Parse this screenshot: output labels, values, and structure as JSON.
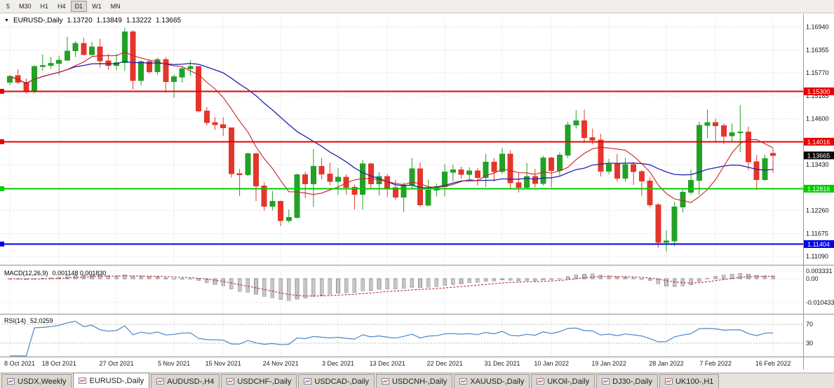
{
  "toolbar": {
    "timeframes": [
      {
        "label": "5",
        "active": false
      },
      {
        "label": "M30",
        "active": false
      },
      {
        "label": "H1",
        "active": false
      },
      {
        "label": "H4",
        "active": false
      },
      {
        "label": "D1",
        "active": true
      },
      {
        "label": "W1",
        "active": false
      },
      {
        "label": "MN",
        "active": false
      }
    ]
  },
  "chart": {
    "symbol_title": "EURUSD-,Daily",
    "ohlc_display": {
      "open": "1.13720",
      "high": "1.13849",
      "low": "1.13222",
      "close": "1.13665"
    },
    "price_axis": {
      "ticks": [
        {
          "label": "1.16940",
          "value": 1.1694
        },
        {
          "label": "1.16355",
          "value": 1.16355
        },
        {
          "label": "1.15770",
          "value": 1.1577
        },
        {
          "label": "1.15185",
          "value": 1.15185
        },
        {
          "label": "1.14600",
          "value": 1.146
        },
        {
          "label": "1.13430",
          "value": 1.1343
        },
        {
          "label": "1.12260",
          "value": 1.1226
        },
        {
          "label": "1.11675",
          "value": 1.11675
        },
        {
          "label": "1.11090",
          "value": 1.1109
        }
      ]
    },
    "hlines": [
      {
        "label": "1.15300",
        "value": 1.153,
        "color": "#e60000"
      },
      {
        "label": "1.14016",
        "value": 1.14016,
        "color": "#e60000"
      },
      {
        "label": "1.12816",
        "value": 1.12816,
        "color": "#00cc00"
      },
      {
        "label": "1.11404",
        "value": 1.11404,
        "color": "#0000e6"
      }
    ],
    "current_price": {
      "label": "1.13665",
      "value": 1.13665,
      "bg": "#000000"
    },
    "date_axis": [
      {
        "index": 0,
        "label": "8 Oct 2021"
      },
      {
        "index": 6,
        "label": "18 Oct 2021"
      },
      {
        "index": 13,
        "label": "27 Oct 2021"
      },
      {
        "index": 20,
        "label": "5 Nov 2021"
      },
      {
        "index": 26,
        "label": "15 Nov 2021"
      },
      {
        "index": 33,
        "label": "24 Nov 2021"
      },
      {
        "index": 40,
        "label": "3 Dec 2021"
      },
      {
        "index": 46,
        "label": "13 Dec 2021"
      },
      {
        "index": 53,
        "label": "22 Dec 2021"
      },
      {
        "index": 60,
        "label": "31 Dec 2021"
      },
      {
        "index": 66,
        "label": "10 Jan 2022"
      },
      {
        "index": 73,
        "label": "19 Jan 2022"
      },
      {
        "index": 80,
        "label": "28 Jan 2022"
      },
      {
        "index": 86,
        "label": "7 Feb 2022"
      },
      {
        "index": 93,
        "label": "16 Feb 2022"
      }
    ],
    "colors": {
      "up": "#22a126",
      "down": "#e5352b",
      "ma_fast": "#cc2020",
      "ma_slow": "#2022b0",
      "grid": "#d6d6d6"
    }
  },
  "indicators": {
    "macd": {
      "name": "MACD(12,26,9)",
      "values": "0.001148 0.001830",
      "ticks": [
        {
          "label": "0.003331",
          "value": 0.003331
        },
        {
          "label": "0.00",
          "value": 0
        },
        {
          "label": "-0.010433",
          "value": -0.010433
        }
      ],
      "histogram_color": "#c6c6c6",
      "signal_color": "#b22222"
    },
    "rsi": {
      "name": "RSI(14)",
      "value": "52.0259",
      "levels": [
        {
          "label": "70",
          "value": 70
        },
        {
          "label": "30",
          "value": 30
        }
      ],
      "line_color": "#4a86c8"
    }
  },
  "chart_data": {
    "type": "candlestick",
    "symbol": "EURUSD-",
    "timeframe": "Daily",
    "x_range": [
      "8 Oct 2021",
      "16 Feb 2022"
    ],
    "y_range": [
      1.1093,
      1.1713
    ],
    "ohlc": [
      [
        1.1553,
        1.1572,
        1.1546,
        1.1568
      ],
      [
        1.157,
        1.1586,
        1.1549,
        1.1553
      ],
      [
        1.1553,
        1.1563,
        1.1524,
        1.153
      ],
      [
        1.153,
        1.1597,
        1.1525,
        1.1593
      ],
      [
        1.1593,
        1.1624,
        1.1582,
        1.1596
      ],
      [
        1.1596,
        1.1618,
        1.1588,
        1.1601
      ],
      [
        1.1601,
        1.1621,
        1.1571,
        1.1609
      ],
      [
        1.1609,
        1.1669,
        1.1609,
        1.1633
      ],
      [
        1.1633,
        1.1658,
        1.1617,
        1.1652
      ],
      [
        1.1652,
        1.1667,
        1.1622,
        1.1624
      ],
      [
        1.1624,
        1.1656,
        1.1621,
        1.1643
      ],
      [
        1.1643,
        1.1664,
        1.1591,
        1.1608
      ],
      [
        1.1608,
        1.1626,
        1.1585,
        1.1596
      ],
      [
        1.1596,
        1.1626,
        1.1584,
        1.1603
      ],
      [
        1.1603,
        1.1692,
        1.1582,
        1.1682
      ],
      [
        1.1682,
        1.1686,
        1.1535,
        1.1558
      ],
      [
        1.1558,
        1.1609,
        1.1545,
        1.1606
      ],
      [
        1.1606,
        1.1612,
        1.1575,
        1.158
      ],
      [
        1.158,
        1.1616,
        1.1572,
        1.1611
      ],
      [
        1.1611,
        1.1617,
        1.1527,
        1.1555
      ],
      [
        1.1555,
        1.1573,
        1.1513,
        1.1567
      ],
      [
        1.1567,
        1.1593,
        1.1552,
        1.1588
      ],
      [
        1.1588,
        1.1609,
        1.157,
        1.1593
      ],
      [
        1.1593,
        1.1595,
        1.1476,
        1.148
      ],
      [
        1.148,
        1.149,
        1.1443,
        1.145
      ],
      [
        1.145,
        1.1464,
        1.1432,
        1.1445
      ],
      [
        1.1445,
        1.1464,
        1.1416,
        1.1437
      ],
      [
        1.1437,
        1.1438,
        1.131,
        1.132
      ],
      [
        1.132,
        1.1332,
        1.1263,
        1.1317
      ],
      [
        1.1317,
        1.1374,
        1.1313,
        1.1371
      ],
      [
        1.1371,
        1.1373,
        1.125,
        1.1289
      ],
      [
        1.1289,
        1.1298,
        1.1226,
        1.1237
      ],
      [
        1.1237,
        1.1276,
        1.1226,
        1.1249
      ],
      [
        1.1249,
        1.1251,
        1.1186,
        1.12
      ],
      [
        1.12,
        1.1229,
        1.1195,
        1.1208
      ],
      [
        1.1208,
        1.132,
        1.1206,
        1.1317
      ],
      [
        1.1317,
        1.1325,
        1.1258,
        1.1294
      ],
      [
        1.1294,
        1.1383,
        1.1235,
        1.1339
      ],
      [
        1.1339,
        1.136,
        1.1305,
        1.1319
      ],
      [
        1.1319,
        1.1348,
        1.129,
        1.13
      ],
      [
        1.13,
        1.1334,
        1.1266,
        1.1311
      ],
      [
        1.1311,
        1.1318,
        1.1267,
        1.1285
      ],
      [
        1.1285,
        1.1292,
        1.1228,
        1.1267
      ],
      [
        1.1267,
        1.1355,
        1.1228,
        1.1345
      ],
      [
        1.1345,
        1.1348,
        1.128,
        1.1294
      ],
      [
        1.1294,
        1.1324,
        1.1264,
        1.1313
      ],
      [
        1.1313,
        1.1319,
        1.126,
        1.1284
      ],
      [
        1.1284,
        1.1304,
        1.1253,
        1.126
      ],
      [
        1.126,
        1.1298,
        1.1222,
        1.129
      ],
      [
        1.129,
        1.136,
        1.1282,
        1.1332
      ],
      [
        1.1332,
        1.1349,
        1.1236,
        1.124
      ],
      [
        1.124,
        1.1305,
        1.1237,
        1.1278
      ],
      [
        1.1278,
        1.1295,
        1.1262,
        1.1287
      ],
      [
        1.1287,
        1.1344,
        1.1262,
        1.1324
      ],
      [
        1.1324,
        1.1343,
        1.13,
        1.133
      ],
      [
        1.133,
        1.1338,
        1.1308,
        1.1318
      ],
      [
        1.1318,
        1.1336,
        1.1304,
        1.1327
      ],
      [
        1.1327,
        1.1334,
        1.129,
        1.131
      ],
      [
        1.131,
        1.137,
        1.1286,
        1.1349
      ],
      [
        1.1349,
        1.136,
        1.13,
        1.1325
      ],
      [
        1.1325,
        1.1386,
        1.132,
        1.137
      ],
      [
        1.137,
        1.1379,
        1.1279,
        1.1297
      ],
      [
        1.1297,
        1.1323,
        1.1272,
        1.1285
      ],
      [
        1.1285,
        1.1347,
        1.128,
        1.1313
      ],
      [
        1.1313,
        1.1332,
        1.1285,
        1.1295
      ],
      [
        1.1295,
        1.1365,
        1.129,
        1.136
      ],
      [
        1.136,
        1.1362,
        1.1285,
        1.1328
      ],
      [
        1.1328,
        1.1374,
        1.1313,
        1.1367
      ],
      [
        1.1367,
        1.1453,
        1.136,
        1.1444
      ],
      [
        1.1444,
        1.1482,
        1.1435,
        1.1455
      ],
      [
        1.1455,
        1.1483,
        1.1398,
        1.1412
      ],
      [
        1.1412,
        1.1435,
        1.1395,
        1.1406
      ],
      [
        1.1406,
        1.1422,
        1.1313,
        1.1326
      ],
      [
        1.1326,
        1.1358,
        1.1318,
        1.1344
      ],
      [
        1.1344,
        1.137,
        1.13,
        1.1308
      ],
      [
        1.1308,
        1.136,
        1.13,
        1.1343
      ],
      [
        1.1343,
        1.1349,
        1.1291,
        1.1325
      ],
      [
        1.1325,
        1.1329,
        1.1263,
        1.1301
      ],
      [
        1.1301,
        1.131,
        1.1235,
        1.124
      ],
      [
        1.124,
        1.1245,
        1.1131,
        1.1145
      ],
      [
        1.1145,
        1.1175,
        1.1121,
        1.1148
      ],
      [
        1.1148,
        1.1248,
        1.1135,
        1.1235
      ],
      [
        1.1235,
        1.1279,
        1.1221,
        1.1273
      ],
      [
        1.1273,
        1.133,
        1.1266,
        1.1303
      ],
      [
        1.1303,
        1.1452,
        1.1266,
        1.1443
      ],
      [
        1.1443,
        1.1483,
        1.1411,
        1.145
      ],
      [
        1.145,
        1.146,
        1.14,
        1.1442
      ],
      [
        1.1442,
        1.1448,
        1.1396,
        1.1416
      ],
      [
        1.1416,
        1.1448,
        1.1403,
        1.1424
      ],
      [
        1.1424,
        1.1495,
        1.1375,
        1.1426
      ],
      [
        1.1426,
        1.144,
        1.1329,
        1.135
      ],
      [
        1.135,
        1.1368,
        1.1278,
        1.1305
      ],
      [
        1.1305,
        1.1369,
        1.1301,
        1.1358
      ],
      [
        1.1372,
        1.13849,
        1.13222,
        1.13665
      ]
    ]
  },
  "tabs": [
    {
      "label": "USDX,Weekly",
      "active": false
    },
    {
      "label": "EURUSD-,Daily",
      "active": true
    },
    {
      "label": "AUDUSD-,H4",
      "active": false
    },
    {
      "label": "USDCHF-,Daily",
      "active": false
    },
    {
      "label": "USDCAD-,Daily",
      "active": false
    },
    {
      "label": "USDCNH-,Daily",
      "active": false
    },
    {
      "label": "XAUUSD-,Daily",
      "active": false
    },
    {
      "label": "UKOil-,Daily",
      "active": false
    },
    {
      "label": "DJ30-,Daily",
      "active": false
    },
    {
      "label": "UK100-,H1",
      "active": false
    }
  ]
}
